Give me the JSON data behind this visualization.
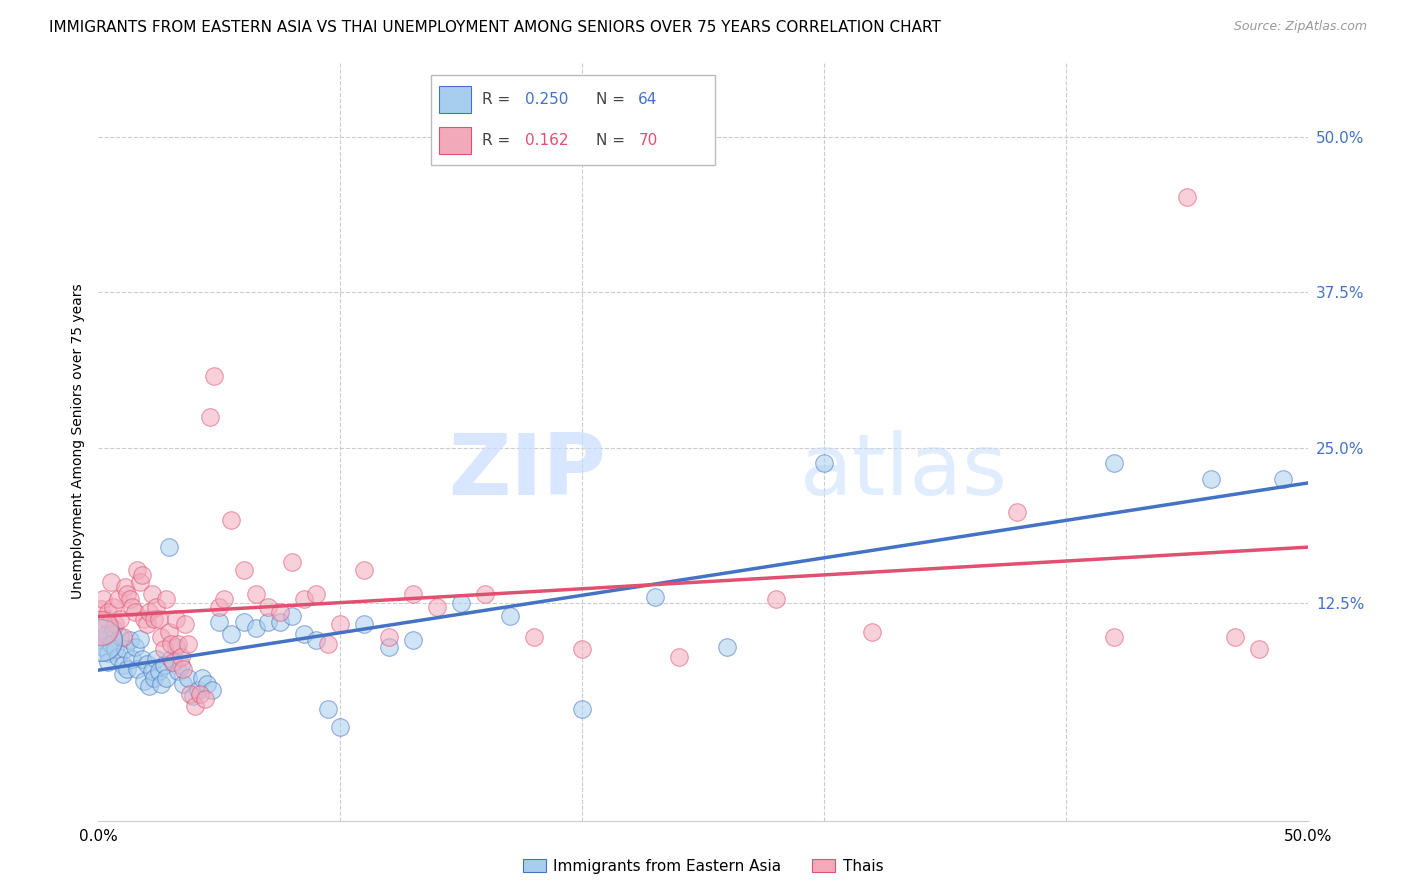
{
  "title": "IMMIGRANTS FROM EASTERN ASIA VS THAI UNEMPLOYMENT AMONG SENIORS OVER 75 YEARS CORRELATION CHART",
  "source": "Source: ZipAtlas.com",
  "ylabel": "Unemployment Among Seniors over 75 years",
  "xlim": [
    0.0,
    0.5
  ],
  "ylim": [
    -0.05,
    0.56
  ],
  "r_blue": 0.25,
  "n_blue": 64,
  "r_pink": 0.162,
  "n_pink": 70,
  "blue_fill": "#A8CEED",
  "pink_fill": "#F2AABB",
  "blue_edge": "#4472C4",
  "pink_edge": "#E05070",
  "blue_line": "#4472C4",
  "pink_line": "#E05070",
  "blue_scatter": [
    [
      0.001,
      0.095
    ],
    [
      0.002,
      0.09
    ],
    [
      0.003,
      0.1
    ],
    [
      0.004,
      0.085
    ],
    [
      0.004,
      0.078
    ],
    [
      0.005,
      0.092
    ],
    [
      0.006,
      0.105
    ],
    [
      0.007,
      0.088
    ],
    [
      0.008,
      0.082
    ],
    [
      0.009,
      0.098
    ],
    [
      0.01,
      0.075
    ],
    [
      0.01,
      0.068
    ],
    [
      0.011,
      0.088
    ],
    [
      0.012,
      0.072
    ],
    [
      0.013,
      0.095
    ],
    [
      0.014,
      0.08
    ],
    [
      0.015,
      0.09
    ],
    [
      0.016,
      0.072
    ],
    [
      0.017,
      0.096
    ],
    [
      0.018,
      0.08
    ],
    [
      0.019,
      0.062
    ],
    [
      0.02,
      0.076
    ],
    [
      0.021,
      0.058
    ],
    [
      0.022,
      0.07
    ],
    [
      0.023,
      0.065
    ],
    [
      0.024,
      0.08
    ],
    [
      0.025,
      0.07
    ],
    [
      0.026,
      0.06
    ],
    [
      0.027,
      0.075
    ],
    [
      0.028,
      0.065
    ],
    [
      0.029,
      0.17
    ],
    [
      0.03,
      0.08
    ],
    [
      0.032,
      0.09
    ],
    [
      0.033,
      0.07
    ],
    [
      0.034,
      0.075
    ],
    [
      0.035,
      0.06
    ],
    [
      0.037,
      0.065
    ],
    [
      0.039,
      0.05
    ],
    [
      0.041,
      0.055
    ],
    [
      0.043,
      0.065
    ],
    [
      0.045,
      0.06
    ],
    [
      0.047,
      0.055
    ],
    [
      0.05,
      0.11
    ],
    [
      0.055,
      0.1
    ],
    [
      0.06,
      0.11
    ],
    [
      0.065,
      0.105
    ],
    [
      0.07,
      0.11
    ],
    [
      0.075,
      0.11
    ],
    [
      0.08,
      0.115
    ],
    [
      0.085,
      0.1
    ],
    [
      0.09,
      0.095
    ],
    [
      0.095,
      0.04
    ],
    [
      0.1,
      0.025
    ],
    [
      0.11,
      0.108
    ],
    [
      0.12,
      0.09
    ],
    [
      0.13,
      0.095
    ],
    [
      0.15,
      0.125
    ],
    [
      0.17,
      0.115
    ],
    [
      0.2,
      0.04
    ],
    [
      0.23,
      0.13
    ],
    [
      0.26,
      0.09
    ],
    [
      0.3,
      0.238
    ],
    [
      0.42,
      0.238
    ],
    [
      0.46,
      0.225
    ],
    [
      0.49,
      0.225
    ]
  ],
  "pink_scatter": [
    [
      0.001,
      0.12
    ],
    [
      0.002,
      0.128
    ],
    [
      0.003,
      0.112
    ],
    [
      0.004,
      0.118
    ],
    [
      0.005,
      0.142
    ],
    [
      0.006,
      0.122
    ],
    [
      0.007,
      0.108
    ],
    [
      0.008,
      0.128
    ],
    [
      0.009,
      0.112
    ],
    [
      0.01,
      0.098
    ],
    [
      0.011,
      0.138
    ],
    [
      0.012,
      0.132
    ],
    [
      0.013,
      0.128
    ],
    [
      0.014,
      0.122
    ],
    [
      0.015,
      0.118
    ],
    [
      0.016,
      0.152
    ],
    [
      0.017,
      0.142
    ],
    [
      0.018,
      0.148
    ],
    [
      0.019,
      0.112
    ],
    [
      0.02,
      0.108
    ],
    [
      0.021,
      0.118
    ],
    [
      0.022,
      0.132
    ],
    [
      0.023,
      0.112
    ],
    [
      0.024,
      0.122
    ],
    [
      0.025,
      0.112
    ],
    [
      0.026,
      0.098
    ],
    [
      0.027,
      0.088
    ],
    [
      0.028,
      0.128
    ],
    [
      0.029,
      0.102
    ],
    [
      0.03,
      0.092
    ],
    [
      0.031,
      0.078
    ],
    [
      0.032,
      0.112
    ],
    [
      0.033,
      0.092
    ],
    [
      0.034,
      0.082
    ],
    [
      0.035,
      0.072
    ],
    [
      0.036,
      0.108
    ],
    [
      0.037,
      0.092
    ],
    [
      0.038,
      0.052
    ],
    [
      0.04,
      0.042
    ],
    [
      0.042,
      0.052
    ],
    [
      0.044,
      0.048
    ],
    [
      0.046,
      0.275
    ],
    [
      0.048,
      0.308
    ],
    [
      0.05,
      0.122
    ],
    [
      0.052,
      0.128
    ],
    [
      0.055,
      0.192
    ],
    [
      0.06,
      0.152
    ],
    [
      0.065,
      0.132
    ],
    [
      0.07,
      0.122
    ],
    [
      0.075,
      0.118
    ],
    [
      0.08,
      0.158
    ],
    [
      0.085,
      0.128
    ],
    [
      0.09,
      0.132
    ],
    [
      0.095,
      0.092
    ],
    [
      0.1,
      0.108
    ],
    [
      0.11,
      0.152
    ],
    [
      0.12,
      0.098
    ],
    [
      0.13,
      0.132
    ],
    [
      0.14,
      0.122
    ],
    [
      0.16,
      0.132
    ],
    [
      0.18,
      0.098
    ],
    [
      0.2,
      0.088
    ],
    [
      0.24,
      0.082
    ],
    [
      0.28,
      0.128
    ],
    [
      0.32,
      0.102
    ],
    [
      0.38,
      0.198
    ],
    [
      0.42,
      0.098
    ],
    [
      0.45,
      0.452
    ],
    [
      0.47,
      0.098
    ],
    [
      0.48,
      0.088
    ]
  ],
  "legend_label_blue": "Immigrants from Eastern Asia",
  "legend_label_pink": "Thais",
  "watermark_zip": "ZIP",
  "watermark_atlas": "atlas",
  "watermark_color_zip": "#C8DEFF",
  "watermark_color_atlas": "#C8DEFF"
}
